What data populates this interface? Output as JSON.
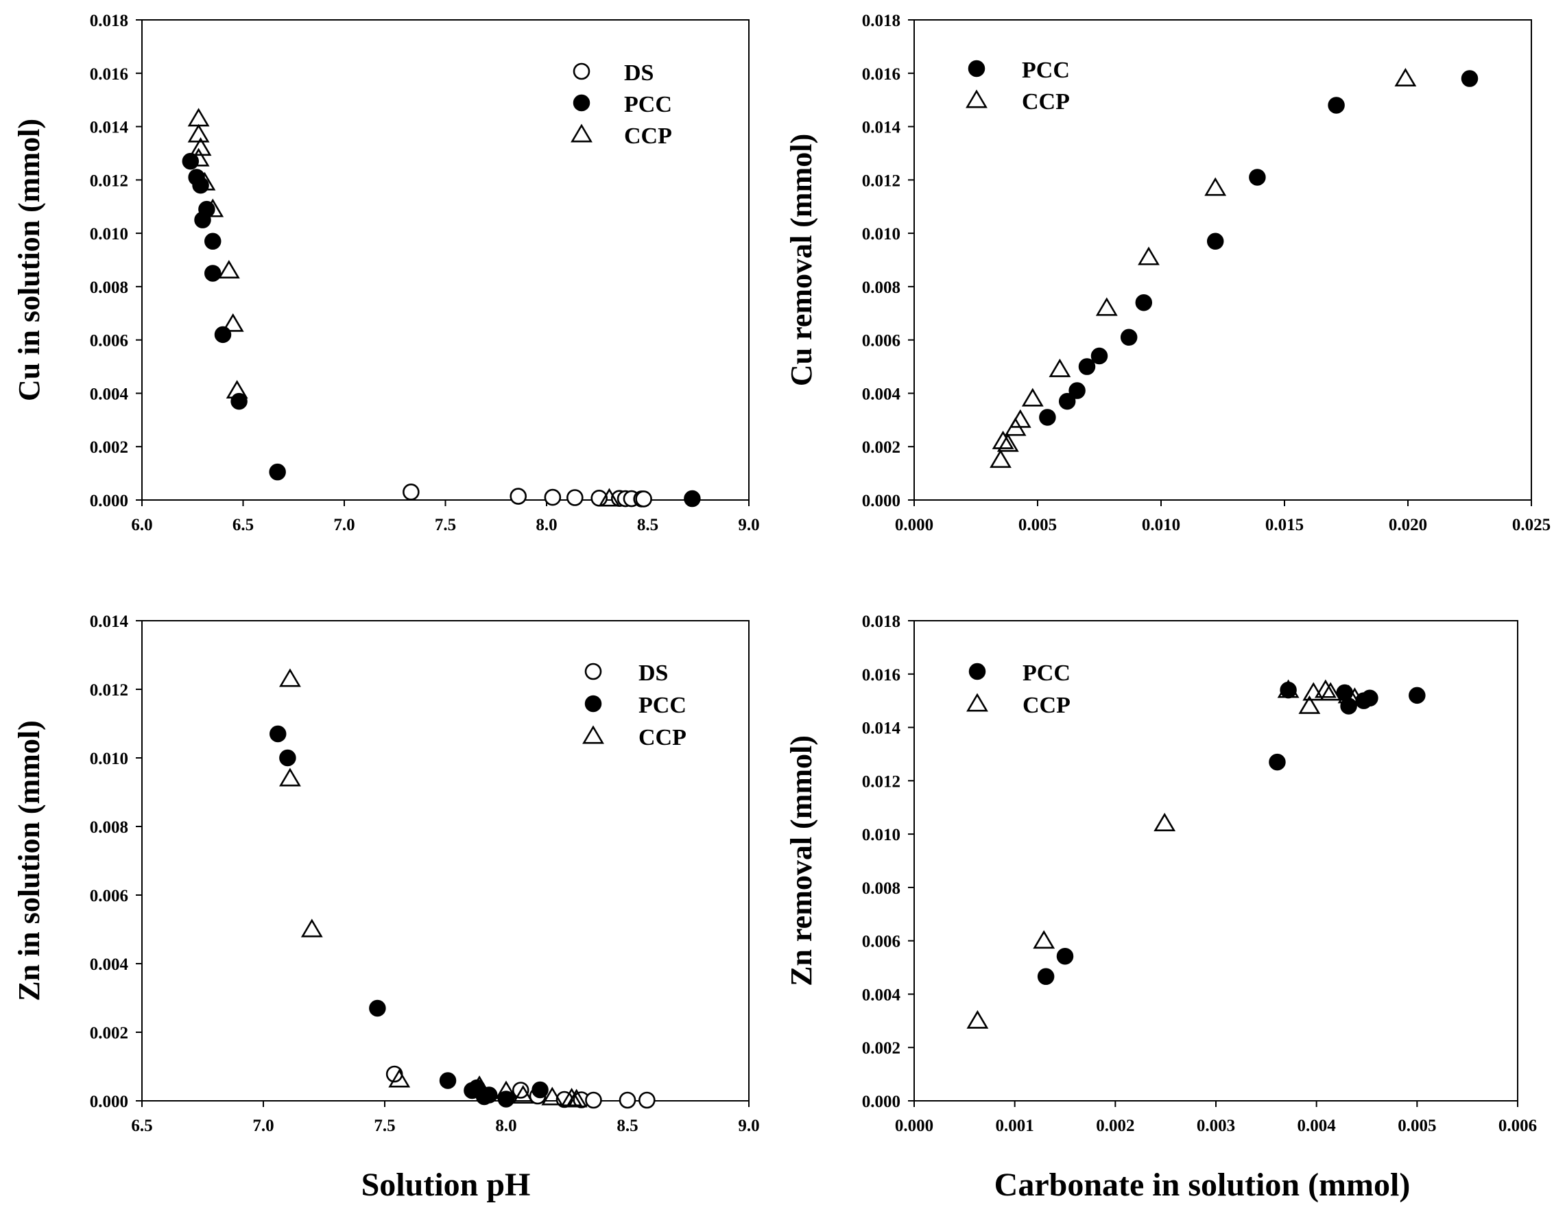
{
  "colors": {
    "ink": "#000000",
    "paper": "#ffffff"
  },
  "figure": {
    "shared_xlabel_left": "Solution pH",
    "shared_xlabel_right": "Carbonate in solution (mmol)"
  },
  "chart_data": [
    {
      "type": "scatter",
      "id": "cu-ph",
      "title": "",
      "xlabel": "",
      "ylabel": "Cu in solution (mmol)",
      "xlim": [
        6.0,
        9.0
      ],
      "ylim": [
        0,
        0.018
      ],
      "xticks": [
        6.0,
        6.5,
        7.0,
        7.5,
        8.0,
        8.5,
        9.0
      ],
      "xtick_labels": [
        "6.0",
        "6.5",
        "7.0",
        "7.5",
        "8.0",
        "8.5",
        "9.0"
      ],
      "yticks": [
        0,
        0.002,
        0.004,
        0.006,
        0.008,
        0.01,
        0.012,
        0.014,
        0.016,
        0.018
      ],
      "ytick_labels": [
        "0.000",
        "0.002",
        "0.004",
        "0.006",
        "0.008",
        "0.010",
        "0.012",
        "0.014",
        "0.016",
        "0.018"
      ],
      "legend_position": "top-right",
      "series": [
        {
          "name": "DS",
          "marker": "open-circle",
          "x": [
            7.33,
            7.86,
            8.03,
            8.14,
            8.26,
            8.36,
            8.39,
            8.42,
            8.47,
            8.48
          ],
          "y": [
            0.0003,
            0.00014,
            0.0001,
            9e-05,
            7e-05,
            6e-05,
            5e-05,
            5e-05,
            4e-05,
            4e-05
          ]
        },
        {
          "name": "PCC",
          "marker": "filled-circle",
          "x": [
            6.24,
            6.27,
            6.29,
            6.3,
            6.32,
            6.35,
            6.35,
            6.4,
            6.48,
            6.67,
            8.72
          ],
          "y": [
            0.0127,
            0.0121,
            0.0118,
            0.0105,
            0.0109,
            0.0097,
            0.0085,
            0.0062,
            0.0037,
            0.00105,
            5e-05
          ]
        },
        {
          "name": "CCP",
          "marker": "open-triangle",
          "x": [
            6.28,
            6.28,
            6.29,
            6.28,
            6.31,
            6.35,
            6.43,
            6.45,
            6.47,
            8.31
          ],
          "y": [
            0.0143,
            0.0137,
            0.0132,
            0.0128,
            0.0119,
            0.0109,
            0.0086,
            0.0066,
            0.0041,
            5e-05
          ]
        }
      ]
    },
    {
      "type": "scatter",
      "id": "cu-carbonate",
      "title": "",
      "xlabel": "",
      "ylabel": "Cu removal (mmol)",
      "xlim": [
        0,
        0.025
      ],
      "ylim": [
        0,
        0.018
      ],
      "xticks": [
        0,
        0.005,
        0.01,
        0.015,
        0.02,
        0.025
      ],
      "xtick_labels": [
        "0.000",
        "0.005",
        "0.010",
        "0.015",
        "0.020",
        "0.025"
      ],
      "yticks": [
        0,
        0.002,
        0.004,
        0.006,
        0.008,
        0.01,
        0.012,
        0.014,
        0.016,
        0.018
      ],
      "ytick_labels": [
        "0.000",
        "0.002",
        "0.004",
        "0.006",
        "0.008",
        "0.010",
        "0.012",
        "0.014",
        "0.016",
        "0.018"
      ],
      "legend_position": "top-left",
      "series": [
        {
          "name": "PCC",
          "marker": "filled-circle",
          "x": [
            0.0054,
            0.0062,
            0.0066,
            0.007,
            0.0075,
            0.0087,
            0.0093,
            0.0122,
            0.0139,
            0.0171,
            0.0225
          ],
          "y": [
            0.0031,
            0.0037,
            0.0041,
            0.005,
            0.0054,
            0.0061,
            0.0074,
            0.0097,
            0.0121,
            0.0148,
            0.0158
          ]
        },
        {
          "name": "CCP",
          "marker": "open-triangle",
          "x": [
            0.0035,
            0.0036,
            0.0038,
            0.0041,
            0.0043,
            0.0048,
            0.0059,
            0.0078,
            0.0095,
            0.0122,
            0.0199
          ],
          "y": [
            0.0015,
            0.0022,
            0.0021,
            0.0027,
            0.003,
            0.0038,
            0.0049,
            0.0072,
            0.0091,
            0.0117,
            0.0158
          ]
        }
      ]
    },
    {
      "type": "scatter",
      "id": "zn-ph",
      "title": "",
      "xlabel": "",
      "ylabel": "Zn in solution (mmol)",
      "xlim": [
        6.5,
        9.0
      ],
      "ylim": [
        0,
        0.014
      ],
      "xticks": [
        6.5,
        7.0,
        7.5,
        8.0,
        8.5,
        9.0
      ],
      "xtick_labels": [
        "6.5",
        "7.0",
        "7.5",
        "8.0",
        "8.5",
        "9.0"
      ],
      "yticks": [
        0,
        0.002,
        0.004,
        0.006,
        0.008,
        0.01,
        0.012,
        0.014
      ],
      "ytick_labels": [
        "0.000",
        "0.002",
        "0.004",
        "0.006",
        "0.008",
        "0.010",
        "0.012",
        "0.014"
      ],
      "legend_position": "top-right",
      "series": [
        {
          "name": "DS",
          "marker": "open-circle",
          "x": [
            7.54,
            8.06,
            8.13,
            8.24,
            8.31,
            8.36,
            8.5,
            8.58
          ],
          "y": [
            0.00078,
            0.00031,
            0.00014,
            4e-05,
            3e-05,
            2e-05,
            2e-05,
            2e-05
          ]
        },
        {
          "name": "PCC",
          "marker": "filled-circle",
          "x": [
            7.06,
            7.1,
            7.47,
            7.76,
            7.86,
            7.88,
            7.91,
            7.93,
            8.0,
            8.14
          ],
          "y": [
            0.0107,
            0.01,
            0.0027,
            0.00059,
            0.0003,
            0.00038,
            0.00012,
            0.00017,
            5e-05,
            0.00032
          ]
        },
        {
          "name": "CCP",
          "marker": "open-triangle",
          "x": [
            7.11,
            7.11,
            7.2,
            7.56,
            7.89,
            8.0,
            8.07,
            8.19,
            8.27,
            8.29
          ],
          "y": [
            0.0123,
            0.0094,
            0.005,
            0.00062,
            0.00043,
            0.00028,
            0.00015,
            0.0001,
            7e-05,
            4e-05
          ]
        }
      ]
    },
    {
      "type": "scatter",
      "id": "zn-carbonate",
      "title": "",
      "xlabel": "",
      "ylabel": "Zn removal (mmol)",
      "xlim": [
        0,
        0.006
      ],
      "ylim": [
        0,
        0.018
      ],
      "xticks": [
        0,
        0.001,
        0.002,
        0.003,
        0.004,
        0.005,
        0.006
      ],
      "xtick_labels": [
        "0.000",
        "0.001",
        "0.002",
        "0.003",
        "0.004",
        "0.005",
        "0.006"
      ],
      "yticks": [
        0,
        0.002,
        0.004,
        0.006,
        0.008,
        0.01,
        0.012,
        0.014,
        0.016,
        0.018
      ],
      "ytick_labels": [
        "0.000",
        "0.002",
        "0.004",
        "0.006",
        "0.008",
        "0.010",
        "0.012",
        "0.014",
        "0.016",
        "0.018"
      ],
      "legend_position": "top-left",
      "series": [
        {
          "name": "PCC",
          "marker": "filled-circle",
          "x": [
            0.00131,
            0.0015,
            0.00361,
            0.00372,
            0.00428,
            0.00432,
            0.00447,
            0.00453,
            0.005
          ],
          "y": [
            0.00466,
            0.00542,
            0.0127,
            0.0154,
            0.0153,
            0.0148,
            0.015,
            0.0151,
            0.0152
          ]
        },
        {
          "name": "CCP",
          "marker": "open-triangle",
          "x": [
            0.00063,
            0.00129,
            0.00249,
            0.00372,
            0.00393,
            0.00397,
            0.00409,
            0.00414,
            0.00432,
            0.00438
          ],
          "y": [
            0.003,
            0.006,
            0.0104,
            0.0154,
            0.0148,
            0.0153,
            0.0154,
            0.0153,
            0.0152,
            0.0151
          ]
        }
      ]
    }
  ]
}
